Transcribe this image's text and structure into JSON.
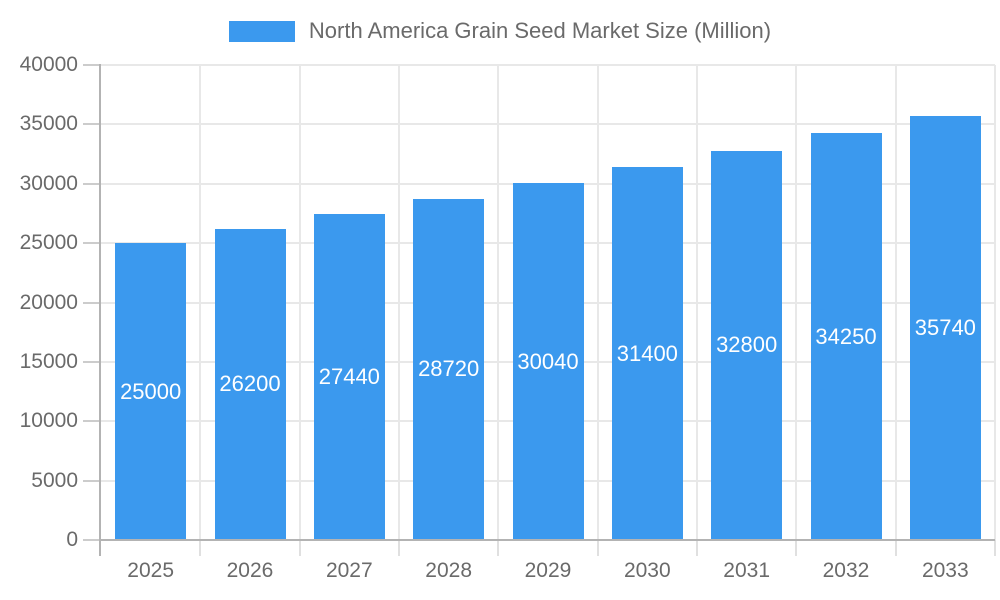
{
  "legend": {
    "label": "North America Grain Seed Market Size (Million)"
  },
  "chart_data": {
    "type": "bar",
    "title": "North America Grain Seed Market Size (Million)",
    "categories": [
      "2025",
      "2026",
      "2027",
      "2028",
      "2029",
      "2030",
      "2031",
      "2032",
      "2033"
    ],
    "values": [
      25000,
      26200,
      27440,
      28720,
      30040,
      31400,
      32800,
      34250,
      35740
    ],
    "bar_labels": [
      "25000",
      "26200",
      "27440",
      "28720",
      "30040",
      "31400",
      "32800",
      "34250",
      "35740"
    ],
    "xlabel": "",
    "ylabel": "",
    "ylim": [
      0,
      40000
    ],
    "ytick_step": 5000,
    "ytick_labels": [
      "0",
      "5000",
      "10000",
      "15000",
      "20000",
      "25000",
      "30000",
      "35000",
      "40000"
    ],
    "grid": true,
    "legend_position": "top",
    "colors": {
      "bar": "#3B99EE",
      "grid": "#e8e8e8",
      "axis": "#b3b3b3",
      "tick": "#cccccc",
      "xtick": "#e0e0e0",
      "label_text": "#6a6a6a",
      "value_label": "#ffffff",
      "background": "#ffffff"
    }
  }
}
